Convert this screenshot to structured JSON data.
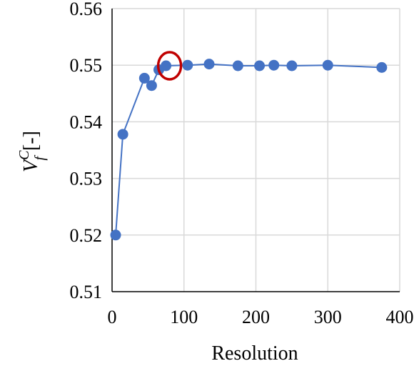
{
  "chart_data": {
    "type": "scatter",
    "xlabel": "Resolution",
    "ylabel": {
      "main": "V",
      "superscript": "C",
      "subscript": "f",
      "unit": "[-]"
    },
    "xlim": [
      0,
      400
    ],
    "ylim": [
      0.51,
      0.56
    ],
    "x_ticks": [
      0,
      100,
      200,
      300,
      400
    ],
    "x_tick_labels": [
      "0",
      "100",
      "200",
      "300",
      "400"
    ],
    "y_ticks": [
      0.51,
      0.52,
      0.53,
      0.54,
      0.55,
      0.56
    ],
    "y_tick_labels": [
      "0.51",
      "0.52",
      "0.53",
      "0.54",
      "0.55",
      "0.56"
    ],
    "grid": true,
    "series": [
      {
        "line": true,
        "markers": true,
        "color": "#4472C4",
        "points": [
          {
            "x": 5,
            "y": 0.52
          },
          {
            "x": 15,
            "y": 0.5378
          },
          {
            "x": 45,
            "y": 0.5477
          },
          {
            "x": 55,
            "y": 0.5464
          },
          {
            "x": 65,
            "y": 0.5492
          },
          {
            "x": 75,
            "y": 0.5499
          },
          {
            "x": 105,
            "y": 0.55
          },
          {
            "x": 135,
            "y": 0.5502
          },
          {
            "x": 175,
            "y": 0.5499
          },
          {
            "x": 205,
            "y": 0.5499
          },
          {
            "x": 225,
            "y": 0.55
          },
          {
            "x": 250,
            "y": 0.5499
          },
          {
            "x": 300,
            "y": 0.55
          },
          {
            "x": 375,
            "y": 0.5496
          }
        ]
      }
    ],
    "highlight": {
      "x": 80,
      "y": 0.5499,
      "shape": "ellipse",
      "color": "#C00000"
    }
  }
}
